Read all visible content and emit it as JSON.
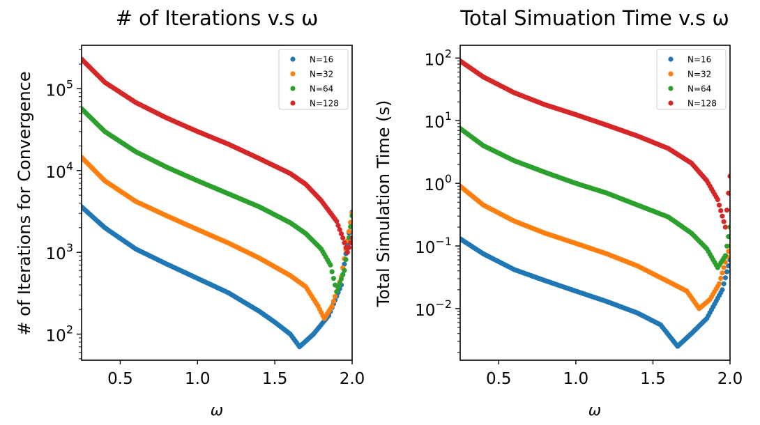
{
  "chart_data": [
    {
      "type": "scatter",
      "title": "# of Iterations v.s ω",
      "xlabel": "ω",
      "ylabel": "# of Iterations for Convergence",
      "yscale": "log",
      "xlim": [
        0.25,
        2.0
      ],
      "ylim": [
        48,
        340000
      ],
      "xticks": [
        "0.5",
        "1.0",
        "1.5",
        "2.0"
      ],
      "yticks": [
        {
          "value": 100,
          "base": "10",
          "exp": "2"
        },
        {
          "value": 1000,
          "base": "10",
          "exp": "3"
        },
        {
          "value": 10000,
          "base": "10",
          "exp": "4"
        },
        {
          "value": 100000,
          "base": "10",
          "exp": "5"
        }
      ],
      "legend_position": "top-right",
      "grid": false,
      "series": [
        {
          "name": "N=16",
          "color": "#1f77b4",
          "points": [
            [
              0.25,
              3600
            ],
            [
              0.4,
              2000
            ],
            [
              0.6,
              1100
            ],
            [
              0.8,
              720
            ],
            [
              1.0,
              480
            ],
            [
              1.2,
              320
            ],
            [
              1.4,
              190
            ],
            [
              1.5,
              140
            ],
            [
              1.6,
              100
            ],
            [
              1.66,
              70
            ],
            [
              1.75,
              100
            ],
            [
              1.85,
              170
            ],
            [
              1.93,
              400
            ],
            [
              2.0,
              3100
            ]
          ]
        },
        {
          "name": "N=32",
          "color": "#ff7f0e",
          "points": [
            [
              0.25,
              14500
            ],
            [
              0.4,
              7500
            ],
            [
              0.6,
              4200
            ],
            [
              0.8,
              2800
            ],
            [
              1.0,
              1900
            ],
            [
              1.2,
              1300
            ],
            [
              1.4,
              850
            ],
            [
              1.6,
              520
            ],
            [
              1.7,
              380
            ],
            [
              1.78,
              220
            ],
            [
              1.82,
              155
            ],
            [
              1.87,
              220
            ],
            [
              1.93,
              500
            ],
            [
              2.0,
              3000
            ]
          ]
        },
        {
          "name": "N=64",
          "color": "#2ca02c",
          "points": [
            [
              0.25,
              57000
            ],
            [
              0.4,
              30000
            ],
            [
              0.6,
              17000
            ],
            [
              0.8,
              11000
            ],
            [
              1.0,
              7500
            ],
            [
              1.2,
              5200
            ],
            [
              1.4,
              3600
            ],
            [
              1.6,
              2300
            ],
            [
              1.7,
              1700
            ],
            [
              1.8,
              1100
            ],
            [
              1.86,
              700
            ],
            [
              1.9,
              330
            ],
            [
              1.95,
              600
            ],
            [
              2.0,
              2800
            ]
          ]
        },
        {
          "name": "N=128",
          "color": "#d62728",
          "points": [
            [
              0.25,
              230000
            ],
            [
              0.4,
              120000
            ],
            [
              0.6,
              68000
            ],
            [
              0.8,
              44000
            ],
            [
              1.0,
              30000
            ],
            [
              1.2,
              21000
            ],
            [
              1.4,
              14000
            ],
            [
              1.6,
              9200
            ],
            [
              1.7,
              6800
            ],
            [
              1.8,
              4300
            ],
            [
              1.9,
              2400
            ],
            [
              1.94,
              1500
            ],
            [
              1.97,
              1000
            ],
            [
              2.0,
              1500
            ]
          ]
        }
      ]
    },
    {
      "type": "scatter",
      "title": "Total Simuation Time v.s ω",
      "xlabel": "ω",
      "ylabel": "Total Simulation Time (s)",
      "yscale": "log",
      "xlim": [
        0.25,
        2.0
      ],
      "ylim": [
        0.0015,
        160
      ],
      "xticks": [
        "0.5",
        "1.0",
        "1.5",
        "2.0"
      ],
      "yticks": [
        {
          "value": 0.01,
          "base": "10",
          "exp": "−2"
        },
        {
          "value": 0.1,
          "base": "10",
          "exp": "−1"
        },
        {
          "value": 1,
          "base": "10",
          "exp": "0"
        },
        {
          "value": 10,
          "base": "10",
          "exp": "1"
        },
        {
          "value": 100,
          "base": "10",
          "exp": "2"
        }
      ],
      "legend_position": "top-right",
      "grid": false,
      "series": [
        {
          "name": "N=16",
          "color": "#1f77b4",
          "points": [
            [
              0.25,
              0.13
            ],
            [
              0.4,
              0.075
            ],
            [
              0.6,
              0.042
            ],
            [
              0.8,
              0.028
            ],
            [
              1.0,
              0.019
            ],
            [
              1.2,
              0.013
            ],
            [
              1.4,
              0.0085
            ],
            [
              1.55,
              0.0055
            ],
            [
              1.66,
              0.0025
            ],
            [
              1.75,
              0.004
            ],
            [
              1.85,
              0.007
            ],
            [
              1.95,
              0.02
            ],
            [
              2.0,
              0.06
            ]
          ]
        },
        {
          "name": "N=32",
          "color": "#ff7f0e",
          "points": [
            [
              0.25,
              0.9
            ],
            [
              0.4,
              0.45
            ],
            [
              0.6,
              0.25
            ],
            [
              0.8,
              0.16
            ],
            [
              1.0,
              0.11
            ],
            [
              1.2,
              0.075
            ],
            [
              1.4,
              0.048
            ],
            [
              1.6,
              0.027
            ],
            [
              1.72,
              0.019
            ],
            [
              1.8,
              0.01
            ],
            [
              1.87,
              0.014
            ],
            [
              1.93,
              0.025
            ],
            [
              2.0,
              0.1
            ]
          ]
        },
        {
          "name": "N=64",
          "color": "#2ca02c",
          "points": [
            [
              0.25,
              7.5
            ],
            [
              0.4,
              4.0
            ],
            [
              0.6,
              2.3
            ],
            [
              0.8,
              1.5
            ],
            [
              1.0,
              1.0
            ],
            [
              1.2,
              0.7
            ],
            [
              1.4,
              0.45
            ],
            [
              1.6,
              0.29
            ],
            [
              1.75,
              0.16
            ],
            [
              1.85,
              0.09
            ],
            [
              1.92,
              0.045
            ],
            [
              1.97,
              0.07
            ],
            [
              2.0,
              0.2
            ]
          ]
        },
        {
          "name": "N=128",
          "color": "#d62728",
          "points": [
            [
              0.25,
              90
            ],
            [
              0.4,
              50
            ],
            [
              0.6,
              28
            ],
            [
              0.8,
              18
            ],
            [
              1.0,
              12.5
            ],
            [
              1.2,
              8.5
            ],
            [
              1.4,
              5.7
            ],
            [
              1.6,
              3.6
            ],
            [
              1.75,
              2.1
            ],
            [
              1.85,
              1.1
            ],
            [
              1.92,
              0.55
            ],
            [
              1.97,
              0.2
            ],
            [
              2.0,
              1.3
            ]
          ]
        }
      ]
    }
  ]
}
